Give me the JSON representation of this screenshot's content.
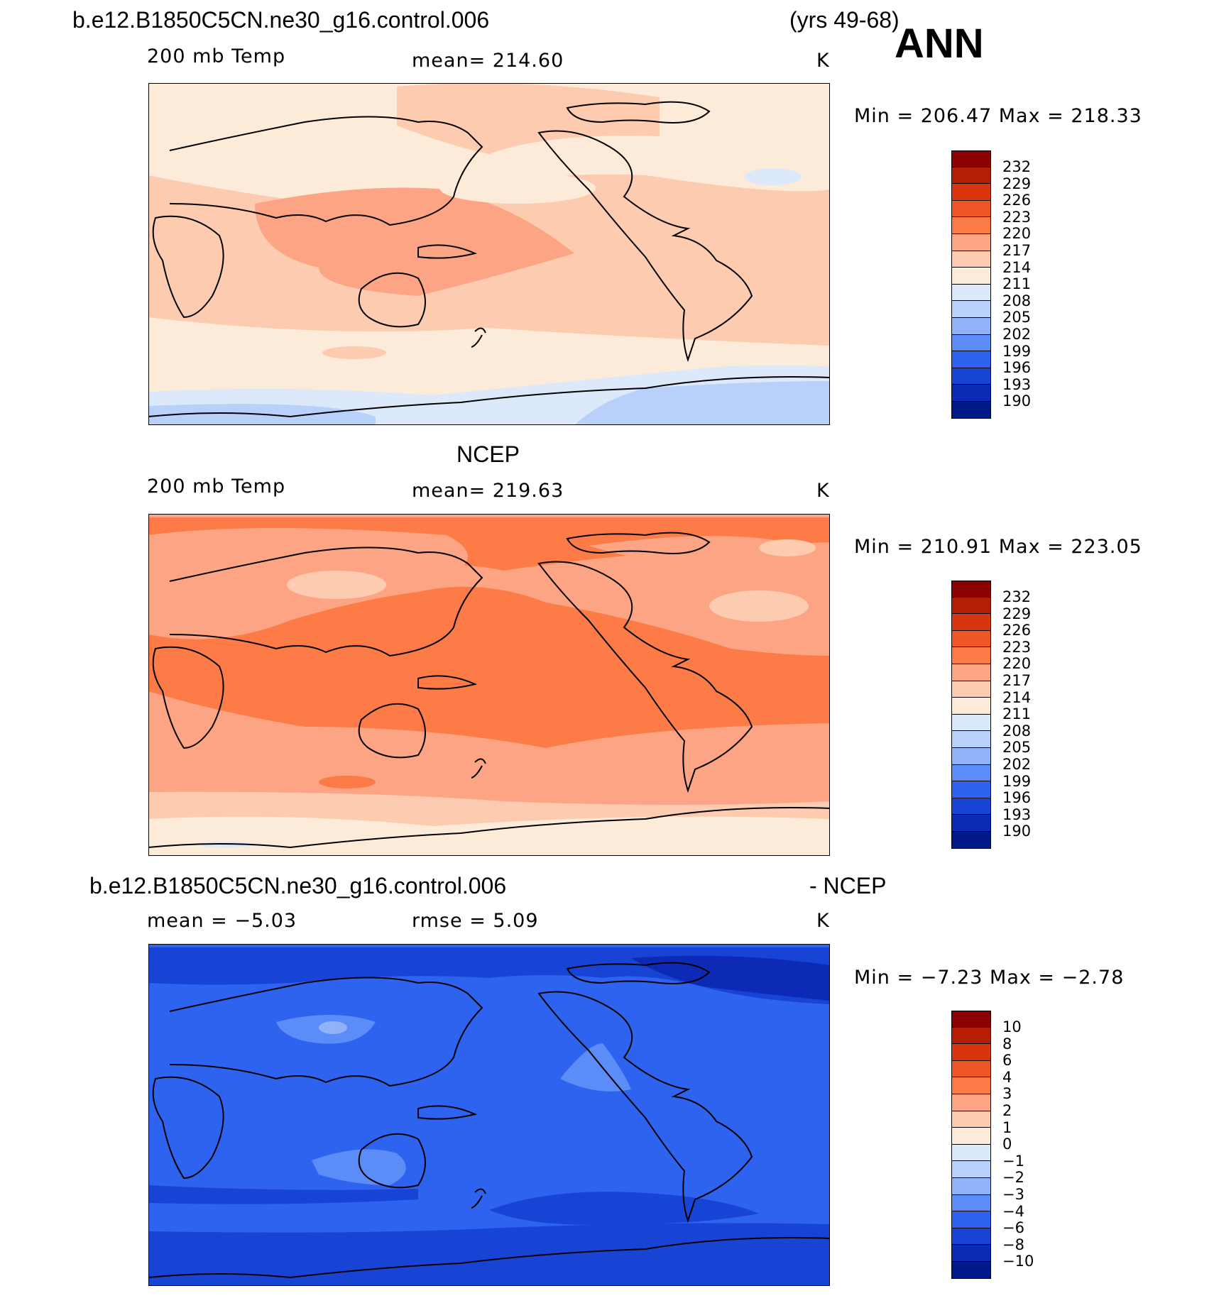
{
  "header": {
    "case_name": "b.e12.B1850C5CN.ne30_g16.control.006",
    "years": "(yrs 49-68)",
    "season": "ANN"
  },
  "panels": [
    {
      "id": "model",
      "title": "",
      "variable": "200 mb Temp",
      "stat": "mean=  214.60",
      "units": "K",
      "minmax": "Min  =  206.47  Max  =  218.33",
      "field_description": "model 200 mb temperature, cooler than NCEP"
    },
    {
      "id": "obs",
      "title": "NCEP",
      "variable": "200 mb Temp",
      "stat": "mean=  219.63",
      "units": "K",
      "minmax": "Min  =  210.91  Max  =  223.05",
      "field_description": "observed 200 mb temperature"
    },
    {
      "id": "diff",
      "title": "b.e12.B1850C5CN.ne30_g16.control.006",
      "title_suffix": "- NCEP",
      "mean": "mean  =    −5.03",
      "rmse": "rmse  =     5.09",
      "units": "K",
      "minmax": "Min  =    −7.23  Max  =    −2.78",
      "field_description": "model minus NCEP difference"
    }
  ],
  "colorbars": {
    "temp_levels": [
      "232",
      "229",
      "226",
      "223",
      "220",
      "217",
      "214",
      "211",
      "208",
      "205",
      "202",
      "199",
      "196",
      "193",
      "190"
    ],
    "diff_levels": [
      "10",
      "8",
      "6",
      "4",
      "3",
      "2",
      "1",
      "0",
      "−1",
      "−2",
      "−3",
      "−4",
      "−6",
      "−8",
      "−10"
    ],
    "colors": [
      "#8b0000",
      "#b31e05",
      "#d8340e",
      "#ef5527",
      "#fc7b46",
      "#fca483",
      "#fdcbb0",
      "#fdebd9",
      "#dbe9fb",
      "#b8d0fa",
      "#8fb2f9",
      "#5c8cf7",
      "#2e63f0",
      "#1844d5",
      "#0c2ab6",
      "#001a8a"
    ]
  },
  "chart_data": {
    "type": "heatmap",
    "title": "b.e12.B1850C5CN.ne30_g16.control.006 (yrs 49-68) ANN",
    "maps": [
      {
        "name": "model",
        "variable": "200 mb Temp",
        "units": "K",
        "mean": 214.6,
        "min": 206.47,
        "max": 218.33,
        "contour_levels": [
          190,
          193,
          196,
          199,
          202,
          205,
          208,
          211,
          214,
          217,
          220,
          223,
          226,
          229,
          232
        ]
      },
      {
        "name": "NCEP",
        "variable": "200 mb Temp",
        "units": "K",
        "mean": 219.63,
        "min": 210.91,
        "max": 223.05,
        "contour_levels": [
          190,
          193,
          196,
          199,
          202,
          205,
          208,
          211,
          214,
          217,
          220,
          223,
          226,
          229,
          232
        ]
      },
      {
        "name": "model - NCEP",
        "units": "K",
        "mean": -5.03,
        "rmse": 5.09,
        "min": -7.23,
        "max": -2.78,
        "contour_levels": [
          -10,
          -8,
          -6,
          -4,
          -3,
          -2,
          -1,
          0,
          1,
          2,
          3,
          4,
          6,
          8,
          10
        ]
      }
    ]
  }
}
